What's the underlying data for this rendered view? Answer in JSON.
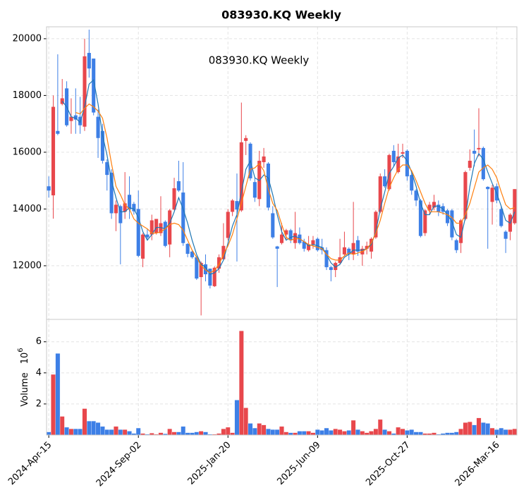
{
  "chart_data": {
    "type": "candlestick",
    "title": "083930.KQ  Weekly",
    "annotation": "083930.KQ  Weekly",
    "categories": [
      "2024-Apr-15",
      null,
      null,
      null,
      null,
      null,
      null,
      null,
      null,
      null,
      null,
      null,
      null,
      null,
      null,
      null,
      null,
      null,
      null,
      null,
      "2024-Sep-02",
      null,
      null,
      null,
      null,
      null,
      null,
      null,
      null,
      null,
      null,
      null,
      null,
      null,
      null,
      null,
      null,
      null,
      null,
      null,
      "2025-Jan-20",
      null,
      null,
      null,
      null,
      null,
      null,
      null,
      null,
      null,
      null,
      null,
      null,
      null,
      null,
      null,
      null,
      null,
      null,
      null,
      "2025-Jun-09",
      null,
      null,
      null,
      null,
      null,
      null,
      null,
      null,
      null,
      null,
      null,
      null,
      null,
      null,
      null,
      null,
      null,
      null,
      null,
      "2025-Oct-27",
      null,
      null,
      null,
      null,
      null,
      null,
      null,
      null,
      null,
      null,
      null,
      null,
      null,
      null,
      null,
      null,
      null,
      null,
      null,
      "2026-Mar-16",
      null,
      null,
      null,
      null
    ],
    "open": [
      14800,
      14480,
      16750,
      17700,
      18250,
      17100,
      17300,
      17250,
      16900,
      19500,
      19300,
      17250,
      16750,
      15650,
      15280,
      13850,
      14100,
      13900,
      14500,
      14180,
      14000,
      12250,
      13100,
      13100,
      13150,
      13150,
      13550,
      12750,
      13980,
      14980,
      14580,
      12770,
      12500,
      12300,
      11600,
      12050,
      11900,
      11280,
      11900,
      12230,
      12980,
      13900,
      14280,
      13950,
      16400,
      16300,
      14950,
      14350,
      15650,
      15600,
      13850,
      12680,
      12800,
      13100,
      13250,
      12800,
      13100,
      12850,
      12550,
      12750,
      12950,
      12650,
      12550,
      11950,
      11850,
      12100,
      12400,
      12600,
      12400,
      12900,
      12400,
      12600,
      12500,
      13000,
      13900,
      15150,
      14700,
      16050,
      15300,
      15950,
      16050,
      15200,
      14650,
      14300,
      13150,
      13950,
      14050,
      14150,
      14100,
      13950,
      13950,
      12900,
      12800,
      13650,
      15450,
      16050,
      16100,
      16150,
      14780,
      14250,
      14800,
      14000,
      13200,
      13200,
      13500
    ],
    "high": [
      15150,
      18000,
      19450,
      18580,
      18500,
      17900,
      18250,
      17950,
      20000,
      20320,
      19300,
      17500,
      17000,
      15750,
      15400,
      14300,
      14150,
      15300,
      15150,
      14250,
      14650,
      13150,
      13300,
      13800,
      13650,
      14450,
      13600,
      14000,
      15100,
      15700,
      15650,
      12800,
      12550,
      12350,
      12150,
      12400,
      11900,
      11980,
      12400,
      13500,
      14000,
      14350,
      15250,
      17750,
      16600,
      16350,
      15100,
      16050,
      16150,
      15650,
      14100,
      12700,
      13500,
      13300,
      13300,
      13900,
      13350,
      12950,
      13050,
      13050,
      13000,
      12950,
      12650,
      12000,
      12150,
      12950,
      13200,
      12650,
      14250,
      13050,
      12700,
      12850,
      13000,
      13950,
      15250,
      15400,
      15950,
      16250,
      16300,
      16300,
      16100,
      15300,
      14700,
      14350,
      14000,
      14250,
      14500,
      14300,
      14200,
      14000,
      14000,
      12950,
      13650,
      15350,
      16100,
      16800,
      17550,
      16200,
      14800,
      14850,
      14900,
      14100,
      13250,
      13850,
      14700
    ],
    "low": [
      14400,
      13660,
      16600,
      17650,
      16900,
      16650,
      16650,
      16650,
      16750,
      18630,
      17300,
      15800,
      15600,
      14650,
      13650,
      13220,
      12050,
      13650,
      13650,
      13800,
      12300,
      11950,
      12900,
      12900,
      13100,
      13050,
      12650,
      12300,
      13950,
      14600,
      12700,
      12300,
      12250,
      11500,
      10250,
      11450,
      11200,
      11250,
      11750,
      12200,
      12900,
      13750,
      12150,
      13900,
      15900,
      15000,
      14250,
      14100,
      15450,
      13950,
      12950,
      11250,
      12750,
      12900,
      12800,
      12600,
      12750,
      12500,
      12500,
      12600,
      12500,
      12400,
      11850,
      11450,
      11600,
      12050,
      12350,
      12200,
      12200,
      12350,
      12000,
      12400,
      12250,
      12950,
      13850,
      14750,
      14650,
      15500,
      15250,
      15800,
      15000,
      14500,
      14100,
      13000,
      13050,
      13800,
      13950,
      13750,
      13800,
      13400,
      12900,
      12450,
      12450,
      13600,
      15350,
      15500,
      15850,
      15000,
      12600,
      13450,
      14200,
      13350,
      12450,
      12900,
      13450
    ],
    "close": [
      14650,
      17600,
      16650,
      17900,
      16950,
      17250,
      17150,
      16950,
      19380,
      18950,
      17400,
      16500,
      15700,
      15200,
      13850,
      14150,
      13500,
      14200,
      13980,
      13920,
      12350,
      13100,
      13000,
      13600,
      13650,
      13500,
      12700,
      13950,
      14730,
      14650,
      12800,
      12420,
      12300,
      11550,
      12100,
      11700,
      11300,
      11930,
      12300,
      12700,
      13900,
      14300,
      13980,
      16350,
      16500,
      15080,
      14400,
      15700,
      15850,
      14050,
      13000,
      12600,
      13100,
      13250,
      12900,
      13150,
      12800,
      12600,
      12750,
      12900,
      12550,
      12550,
      11950,
      11850,
      12100,
      12300,
      12650,
      12400,
      12800,
      12500,
      12600,
      12700,
      12950,
      13900,
      15150,
      14800,
      15900,
      15650,
      15850,
      16000,
      15150,
      14650,
      14300,
      13050,
      13950,
      14150,
      14250,
      13900,
      13900,
      13500,
      13000,
      12550,
      13600,
      15300,
      15700,
      15950,
      16150,
      15050,
      14700,
      14750,
      14300,
      13400,
      12950,
      13800,
      14700
    ],
    "up_color": "#e8474c",
    "down_color": "#3d7fe6",
    "ylim": [
      10110,
      20420
    ],
    "yticks": [
      12000,
      14000,
      16000,
      18000,
      20000
    ],
    "grid": true,
    "moving_averages": [
      {
        "color": "#1f77b4",
        "values": [
          null,
          null,
          null,
          17800,
          17600,
          17250,
          17200,
          17050,
          17600,
          18400,
          18550,
          17700,
          16600,
          15900,
          15000,
          14400,
          13900,
          13900,
          14050,
          14000,
          13700,
          13200,
          12900,
          13100,
          13350,
          13350,
          13300,
          13500,
          13900,
          14400,
          14000,
          13500,
          12900,
          12400,
          12050,
          11950,
          11700,
          11750,
          11900,
          12200,
          12800,
          13400,
          13800,
          14600,
          15400,
          15700,
          15100,
          15000,
          15200,
          15100,
          14500,
          13800,
          13200,
          12900,
          13000,
          13050,
          12950,
          12850,
          12700,
          12750,
          12700,
          12650,
          12400,
          12100,
          11950,
          12050,
          12300,
          12400,
          12550,
          12550,
          12550,
          12600,
          12750,
          13200,
          14000,
          14600,
          15250,
          15500,
          15800,
          15900,
          15700,
          15300,
          14800,
          14200,
          13800,
          13800,
          14100,
          14100,
          14000,
          13800,
          13550,
          13100,
          13000,
          13700,
          14800,
          15600,
          15950,
          15750,
          15300,
          14900,
          14550,
          14100,
          13600,
          13500,
          13900
        ]
      },
      {
        "color": "#ff7f0e",
        "values": [
          null,
          null,
          null,
          null,
          null,
          null,
          17400,
          17350,
          17550,
          17700,
          17600,
          17450,
          17200,
          16500,
          15600,
          14800,
          14500,
          14150,
          14000,
          13650,
          13500,
          13400,
          13300,
          13150,
          13150,
          13200,
          13300,
          13450,
          13500,
          13450,
          13250,
          12900,
          12550,
          12300,
          12000,
          11850,
          11750,
          11850,
          12050,
          12400,
          12700,
          13100,
          13650,
          14200,
          14800,
          15400,
          15450,
          15600,
          15350,
          14700,
          14200,
          13950,
          13450,
          13000,
          12900,
          12950,
          12950,
          12850,
          12750,
          12700,
          12650,
          12600,
          12400,
          12250,
          12200,
          12200,
          12350,
          12450,
          12400,
          12450,
          12500,
          12600,
          12800,
          13150,
          13600,
          14200,
          14750,
          15100,
          15400,
          15550,
          15550,
          15350,
          15000,
          14600,
          14200,
          13900,
          13900,
          13900,
          13850,
          13800,
          13700,
          13500,
          13500,
          13800,
          14200,
          14750,
          15300,
          15450,
          15550,
          15400,
          15100,
          14600,
          14150,
          14000,
          14050
        ]
      }
    ],
    "volume": {
      "ylabel": "Volume",
      "scale_base": "10",
      "scale_exponent": "6",
      "values": [
        0.2,
        3.9,
        5.25,
        1.2,
        0.5,
        0.4,
        0.4,
        0.4,
        1.7,
        0.9,
        0.9,
        0.8,
        0.55,
        0.35,
        0.35,
        0.55,
        0.35,
        0.35,
        0.25,
        0.1,
        0.45,
        0.1,
        0.05,
        0.12,
        0.05,
        0.15,
        0.08,
        0.4,
        0.2,
        0.2,
        0.55,
        0.15,
        0.15,
        0.2,
        0.25,
        0.2,
        0.05,
        0.05,
        0.1,
        0.4,
        0.5,
        0.15,
        2.25,
        6.7,
        1.75,
        0.75,
        0.45,
        0.75,
        0.65,
        0.4,
        0.35,
        0.35,
        0.55,
        0.2,
        0.15,
        0.15,
        0.25,
        0.25,
        0.25,
        0.15,
        0.35,
        0.3,
        0.45,
        0.3,
        0.4,
        0.35,
        0.25,
        0.3,
        0.95,
        0.35,
        0.25,
        0.15,
        0.25,
        0.4,
        1.0,
        0.35,
        0.25,
        0.1,
        0.5,
        0.4,
        0.3,
        0.35,
        0.2,
        0.2,
        0.1,
        0.1,
        0.15,
        0.05,
        0.1,
        0.15,
        0.15,
        0.2,
        0.4,
        0.8,
        0.85,
        0.65,
        1.1,
        0.8,
        0.75,
        0.45,
        0.35,
        0.45,
        0.35,
        0.35,
        0.4
      ],
      "ylim": [
        0,
        7.44
      ],
      "yticks": [
        2,
        4,
        6
      ]
    }
  }
}
